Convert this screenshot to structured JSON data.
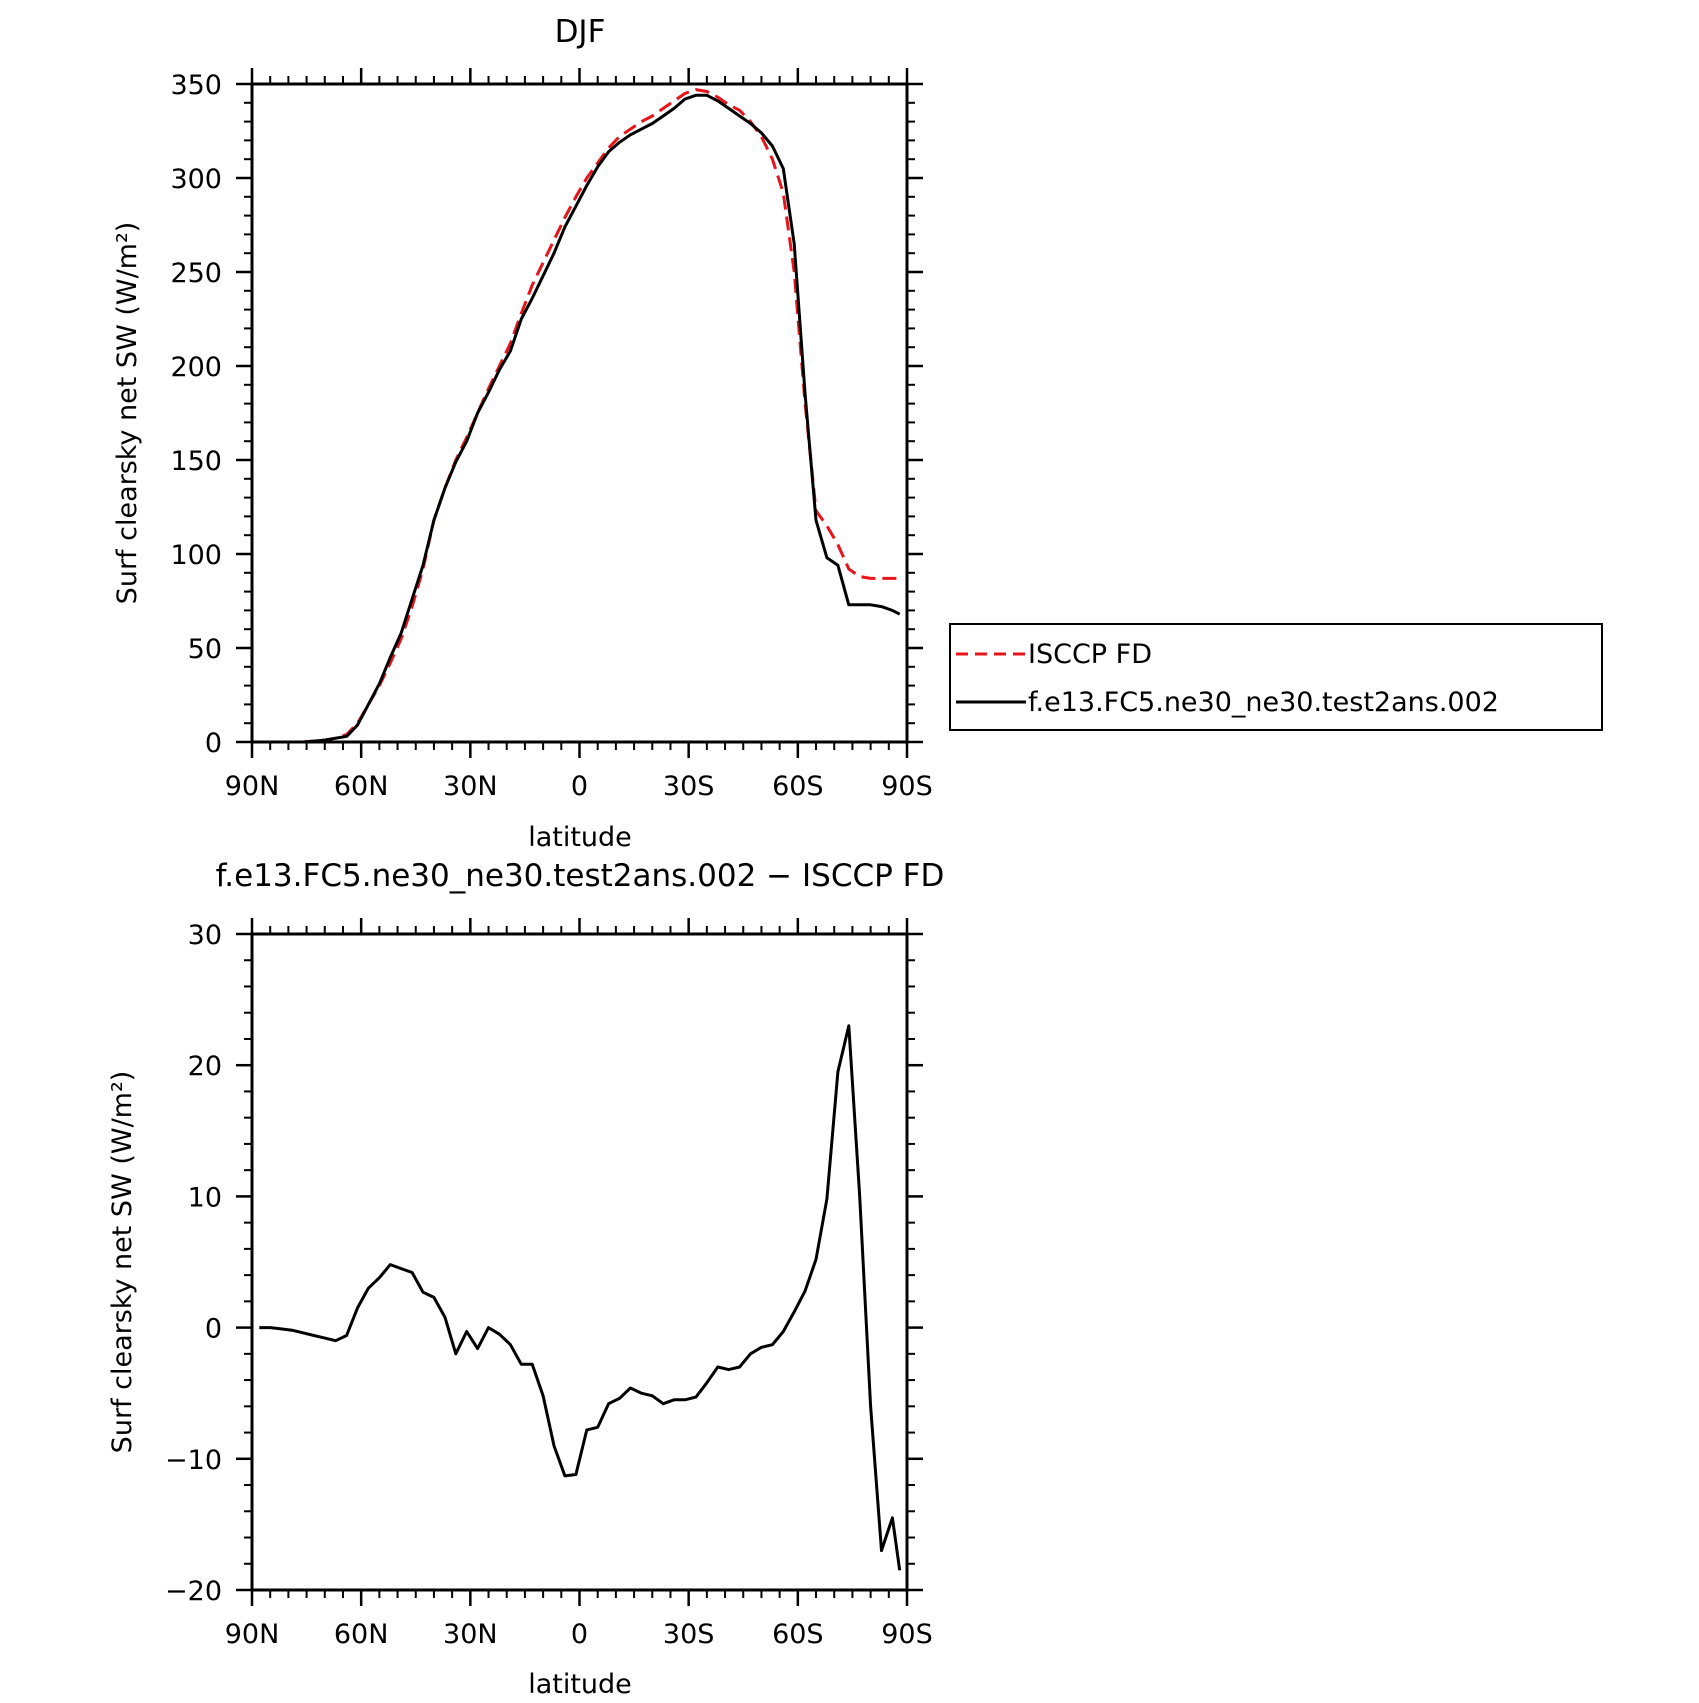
{
  "chart_data": [
    {
      "type": "line",
      "title": "DJF",
      "xlabel": "latitude",
      "ylabel": "Surf clearsky net SW (W/m²)",
      "xlim": [
        90,
        -90
      ],
      "ylim": [
        0,
        350
      ],
      "x_ticks": [
        90,
        60,
        30,
        0,
        -30,
        -60,
        -90
      ],
      "x_tick_labels": [
        "90N",
        "60N",
        "30N",
        "0",
        "30S",
        "60S",
        "90S"
      ],
      "y_ticks": [
        0,
        50,
        100,
        150,
        200,
        250,
        300,
        350
      ],
      "y_tick_labels": [
        "0",
        "50",
        "100",
        "150",
        "200",
        "250",
        "300",
        "350"
      ],
      "grid": false,
      "legend_position": "right",
      "series": [
        {
          "name": "ISCCP FD",
          "color": "#e8141b",
          "dash": "dashed",
          "x": [
            88,
            85,
            82,
            79,
            76,
            73,
            70,
            67,
            64,
            61,
            58,
            55,
            52,
            49,
            46,
            43,
            40,
            37,
            34,
            31,
            28,
            25,
            22,
            19,
            16,
            13,
            10,
            7,
            4,
            1,
            -2,
            -5,
            -8,
            -11,
            -14,
            -17,
            -20,
            -23,
            -26,
            -29,
            -32,
            -35,
            -38,
            -41,
            -44,
            -47,
            -50,
            -53,
            -56,
            -59,
            -62,
            -65,
            -68,
            -71,
            -74,
            -77,
            -80,
            -83,
            -86,
            -88
          ],
          "y": [
            0,
            0,
            0,
            0,
            0,
            0.5,
            1,
            2,
            4,
            10,
            20,
            30,
            42,
            55,
            72,
            92,
            118,
            135,
            150,
            162,
            175,
            188,
            200,
            212,
            228,
            243,
            255,
            267,
            279,
            290,
            300,
            308,
            316,
            322,
            326,
            330,
            333,
            337,
            341,
            345,
            347,
            346,
            343,
            339,
            336,
            330,
            322,
            310,
            292,
            250,
            180,
            123,
            115,
            105,
            92,
            88,
            87,
            87,
            87,
            87
          ]
        },
        {
          "name": "f.e13.FC5.ne30_ne30.test2ans.002",
          "color": "#000000",
          "dash": "solid",
          "x": [
            88,
            85,
            82,
            79,
            76,
            73,
            70,
            67,
            64,
            61,
            58,
            55,
            52,
            49,
            46,
            43,
            40,
            37,
            34,
            31,
            28,
            25,
            22,
            19,
            16,
            13,
            10,
            7,
            4,
            1,
            -2,
            -5,
            -8,
            -11,
            -14,
            -17,
            -20,
            -23,
            -26,
            -29,
            -32,
            -35,
            -38,
            -41,
            -44,
            -47,
            -50,
            -53,
            -56,
            -59,
            -62,
            -65,
            -68,
            -71,
            -74,
            -77,
            -80,
            -83,
            -86,
            -88
          ],
          "y": [
            0,
            0,
            0,
            0,
            0,
            0.5,
            1,
            2,
            3,
            9,
            20,
            31,
            45,
            58,
            76,
            94,
            118,
            135,
            149,
            160,
            175,
            186,
            198,
            208,
            225,
            236,
            248,
            260,
            274,
            285,
            296,
            306,
            314,
            319,
            323,
            326,
            329,
            333,
            337,
            342,
            344,
            344,
            341,
            337,
            333,
            329,
            324,
            317,
            305,
            265,
            185,
            118,
            98,
            94,
            73,
            73,
            73,
            72,
            70,
            68
          ]
        }
      ]
    },
    {
      "type": "line",
      "title": "f.e13.FC5.ne30_ne30.test2ans.002 − ISCCP FD",
      "xlabel": "latitude",
      "ylabel": "Surf clearsky net SW (W/m²)",
      "xlim": [
        90,
        -90
      ],
      "ylim": [
        -20,
        30
      ],
      "x_ticks": [
        90,
        60,
        30,
        0,
        -30,
        -60,
        -90
      ],
      "x_tick_labels": [
        "90N",
        "60N",
        "30N",
        "0",
        "30S",
        "60S",
        "90S"
      ],
      "y_ticks": [
        -20,
        -10,
        0,
        10,
        20,
        30
      ],
      "y_tick_labels": [
        "−20",
        "−10",
        "0",
        "10",
        "20",
        "30"
      ],
      "grid": false,
      "series": [
        {
          "color": "#000000",
          "dash": "solid",
          "x": [
            88,
            85,
            82,
            79,
            76,
            73,
            70,
            67,
            64,
            61,
            58,
            55,
            52,
            49,
            46,
            43,
            40,
            37,
            34,
            31,
            28,
            25,
            22,
            19,
            16,
            13,
            10,
            7,
            4,
            1,
            -2,
            -5,
            -8,
            -11,
            -14,
            -17,
            -20,
            -23,
            -26,
            -29,
            -32,
            -35,
            -38,
            -41,
            -44,
            -47,
            -50,
            -53,
            -56,
            -59,
            -62,
            -65,
            -68,
            -71,
            -74,
            -77,
            -80,
            -83,
            -86,
            -88
          ],
          "y": [
            0,
            0,
            -0.1,
            -0.2,
            -0.4,
            -0.6,
            -0.8,
            -1.0,
            -0.6,
            1.5,
            3.0,
            3.8,
            4.8,
            4.5,
            4.2,
            2.7,
            2.3,
            0.8,
            -2.0,
            -0.3,
            -1.6,
            0.0,
            -0.5,
            -1.3,
            -2.8,
            -2.8,
            -5.2,
            -9.0,
            -11.3,
            -11.2,
            -7.8,
            -7.6,
            -5.8,
            -5.4,
            -4.6,
            -5.0,
            -5.2,
            -5.8,
            -5.5,
            -5.5,
            -5.3,
            -4.2,
            -3.0,
            -3.2,
            -3.0,
            -2.0,
            -1.5,
            -1.3,
            -0.3,
            1.2,
            2.8,
            5.2,
            9.8,
            19.5,
            23.0,
            10.0,
            -6.0,
            -17.0,
            -14.5,
            -18.5
          ]
        }
      ]
    }
  ]
}
